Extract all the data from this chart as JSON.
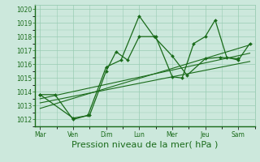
{
  "xlabel": "Pression niveau de la mer( hPa )",
  "xlabel_fontsize": 8,
  "ylim": [
    1011.5,
    1020.3
  ],
  "yticks": [
    1012,
    1013,
    1014,
    1015,
    1016,
    1017,
    1018,
    1019,
    1020
  ],
  "background_color": "#cce8dc",
  "grid_color": "#99ccb3",
  "line_color": "#1a6b1a",
  "tick_label_color": "#1a6b1a",
  "axis_label_color": "#1a6b1a",
  "x_day_labels": [
    "Mar",
    "Ven",
    "Dim",
    "Lun",
    "Mer",
    "Jeu",
    "Sam"
  ],
  "x_day_positions": [
    0,
    1,
    2,
    3,
    4,
    5,
    6
  ],
  "xlim": [
    -0.15,
    6.5
  ],
  "series1_x": [
    0.0,
    0.45,
    1.0,
    1.45,
    2.0,
    2.45,
    3.0,
    3.45,
    4.0,
    4.45,
    5.0,
    5.45,
    6.0
  ],
  "series1_y": [
    1013.8,
    1013.8,
    1012.0,
    1012.3,
    1015.8,
    1016.3,
    1019.5,
    1018.0,
    1016.6,
    1015.2,
    1016.4,
    1016.5,
    1016.4
  ],
  "series2_x": [
    0.0,
    1.0,
    1.5,
    2.0,
    2.3,
    2.65,
    3.0,
    3.5,
    4.0,
    4.3,
    4.65,
    5.0,
    5.3,
    5.65,
    6.0,
    6.35
  ],
  "series2_y": [
    1013.8,
    1012.1,
    1012.3,
    1015.5,
    1016.9,
    1016.3,
    1018.0,
    1018.0,
    1015.1,
    1015.0,
    1017.5,
    1018.0,
    1019.2,
    1016.5,
    1016.3,
    1017.5
  ],
  "trend1_x": [
    0.0,
    6.35
  ],
  "trend1_y": [
    1013.5,
    1016.8
  ],
  "trend2_x": [
    0.0,
    6.35
  ],
  "trend2_y": [
    1013.2,
    1016.2
  ],
  "trend3_x": [
    0.0,
    6.35
  ],
  "trend3_y": [
    1012.8,
    1017.4
  ],
  "figsize": [
    3.2,
    2.0
  ],
  "dpi": 100
}
